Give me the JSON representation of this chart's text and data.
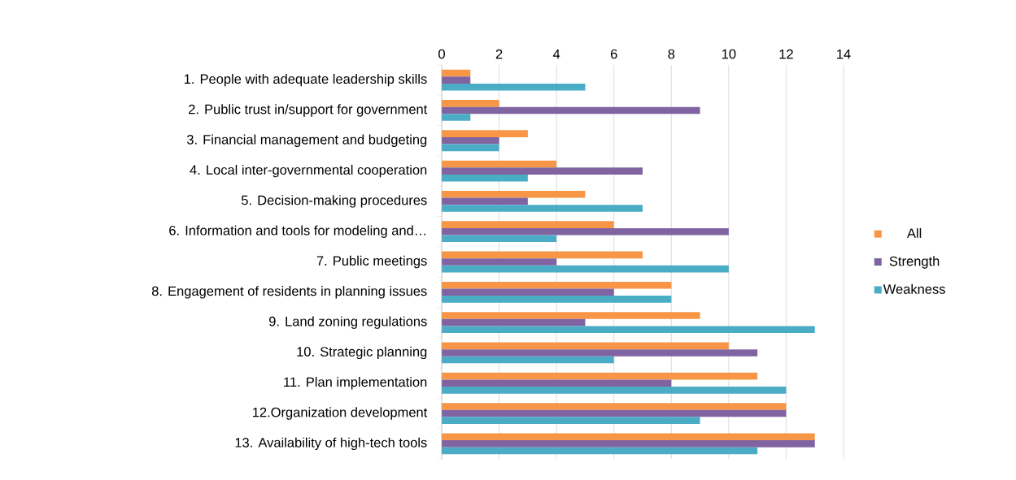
{
  "chart_data": {
    "type": "bar",
    "orientation": "horizontal",
    "categories": [
      "1. People with adequate leadership skills",
      "2. Public trust in/support for government",
      "3. Financial management and budgeting",
      "4. Local inter-governmental cooperation",
      "5. Decision-making procedures",
      "6. Information and tools for modeling and…",
      "7. Public meetings",
      "8. Engagement of residents in planning issues",
      "9. Land zoning regulations",
      "10. Strategic planning",
      "11. Plan implementation",
      "12.Organization development",
      "13. Availability of high-tech tools"
    ],
    "series": [
      {
        "name": "All",
        "color": "#f79646",
        "values": [
          1,
          2,
          3,
          4,
          5,
          6,
          7,
          8,
          9,
          10,
          11,
          12,
          13
        ]
      },
      {
        "name": "Strength",
        "color": "#8064a2",
        "values": [
          1,
          9,
          2,
          7,
          3,
          10,
          4,
          6,
          5,
          11,
          8,
          12,
          13
        ]
      },
      {
        "name": "Weakness",
        "color": "#4bacc6",
        "values": [
          5,
          1,
          2,
          3,
          7,
          4,
          10,
          8,
          13,
          6,
          12,
          9,
          11
        ]
      }
    ],
    "xlim": [
      0,
      14
    ],
    "xticks": [
      0,
      2,
      4,
      6,
      8,
      10,
      12,
      14
    ],
    "grid": "x",
    "legend": "right"
  }
}
